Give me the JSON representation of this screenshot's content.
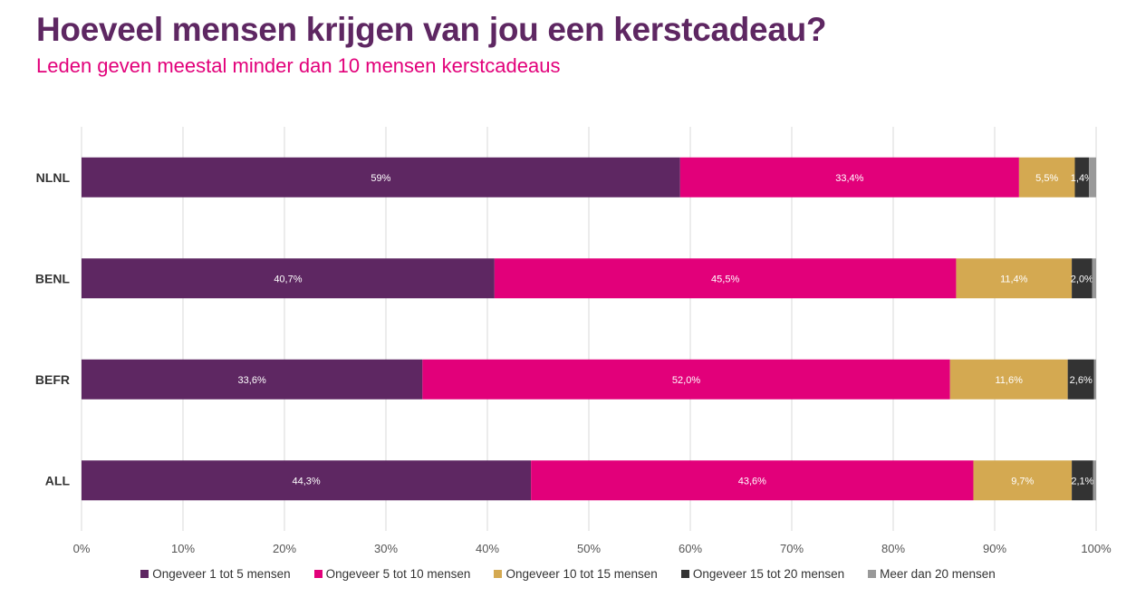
{
  "header": {
    "title": "Hoeveel mensen krijgen van jou een kerstcadeau?",
    "subtitle": "Leden geven meestal minder dan 10 mensen kerstcadeaus"
  },
  "chart_data": {
    "type": "bar",
    "orientation": "horizontal",
    "stacked": true,
    "categories": [
      "NLNL",
      "BENL",
      "BEFR",
      "ALL"
    ],
    "series": [
      {
        "name": "Ongeveer 1 tot 5 mensen",
        "color": "#5e2762",
        "values": [
          59.0,
          40.7,
          33.6,
          44.3
        ],
        "labels": [
          "59%",
          "40,7%",
          "33,6%",
          "44,3%"
        ]
      },
      {
        "name": "Ongeveer 5 tot 10 mensen",
        "color": "#e2007a",
        "values": [
          33.4,
          45.5,
          52.0,
          43.6
        ],
        "labels": [
          "33,4%",
          "45,5%",
          "52,0%",
          "43,6%"
        ]
      },
      {
        "name": "Ongeveer 10 tot 15 mensen",
        "color": "#d4a951",
        "values": [
          5.5,
          11.4,
          11.6,
          9.7
        ],
        "labels": [
          "5,5%",
          "11,4%",
          "11,6%",
          "9,7%"
        ]
      },
      {
        "name": "Ongeveer 15 tot 20 mensen",
        "color": "#333333",
        "values": [
          1.4,
          2.0,
          2.6,
          2.1
        ],
        "labels": [
          "1,4%",
          "2,0%",
          "2,6%",
          "2,1%"
        ]
      },
      {
        "name": "Meer dan 20 mensen",
        "color": "#999999",
        "values": [
          0.7,
          0.4,
          0.2,
          0.3
        ],
        "labels": [
          "",
          "",
          "",
          ""
        ]
      }
    ],
    "xlim": [
      0,
      100
    ],
    "xticks": [
      "0%",
      "10%",
      "20%",
      "30%",
      "40%",
      "50%",
      "60%",
      "70%",
      "80%",
      "90%",
      "100%"
    ],
    "grid": true,
    "legend": "bottom"
  }
}
